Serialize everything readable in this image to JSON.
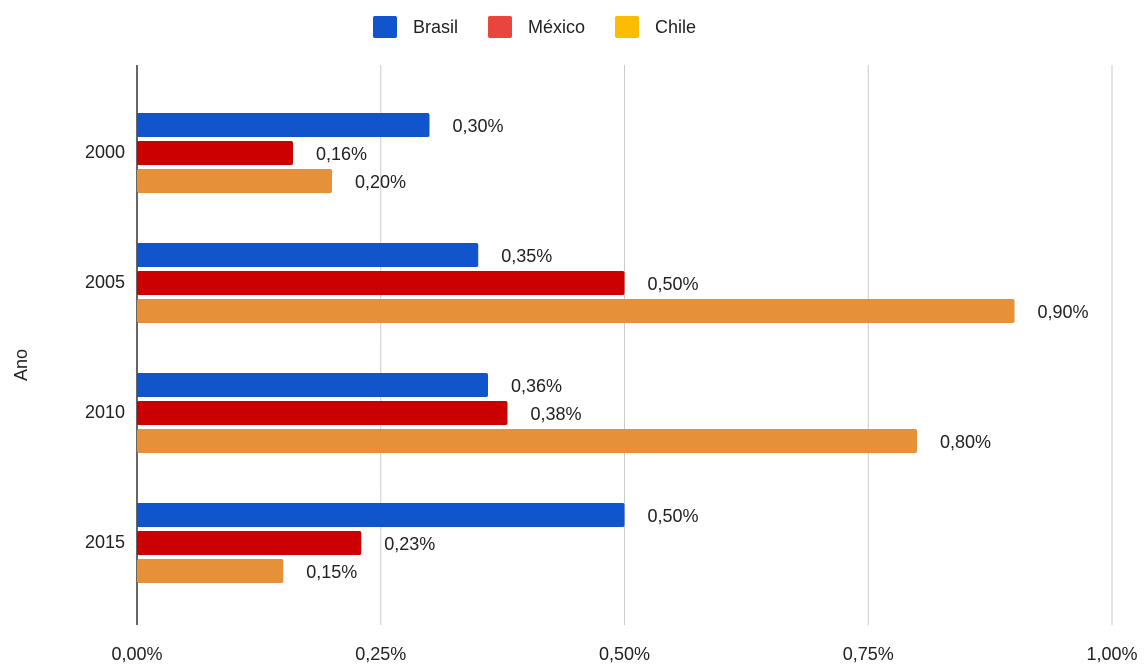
{
  "chart_data": {
    "type": "bar",
    "orientation": "horizontal",
    "y_axis_label": "Ano",
    "categories": [
      "2000",
      "2005",
      "2010",
      "2015"
    ],
    "series": [
      {
        "name": "Brasil",
        "color": "#1155cc",
        "legend_color": "#1155cc",
        "values": [
          0.3,
          0.35,
          0.36,
          0.5
        ],
        "value_labels": [
          "0,30%",
          "0,35%",
          "0,36%",
          "0,50%"
        ]
      },
      {
        "name": "México",
        "color": "#cc0000",
        "legend_color": "#e8453c",
        "values": [
          0.16,
          0.5,
          0.38,
          0.23
        ],
        "value_labels": [
          "0,16%",
          "0,50%",
          "0,38%",
          "0,23%"
        ]
      },
      {
        "name": "Chile",
        "color": "#e69138",
        "legend_color": "#fbbc04",
        "values": [
          0.2,
          0.9,
          0.8,
          0.15
        ],
        "value_labels": [
          "0,20%",
          "0,90%",
          "0,80%",
          "0,15%"
        ]
      }
    ],
    "xlim": [
      0,
      1
    ],
    "xticks": [
      {
        "value": 0,
        "label": "0,00%"
      },
      {
        "value": 0.25,
        "label": "0,25%"
      },
      {
        "value": 0.5,
        "label": "0,50%"
      },
      {
        "value": 0.75,
        "label": "0,75%"
      },
      {
        "value": 1,
        "label": "1,00%"
      }
    ],
    "grid": true,
    "legend": "top"
  }
}
